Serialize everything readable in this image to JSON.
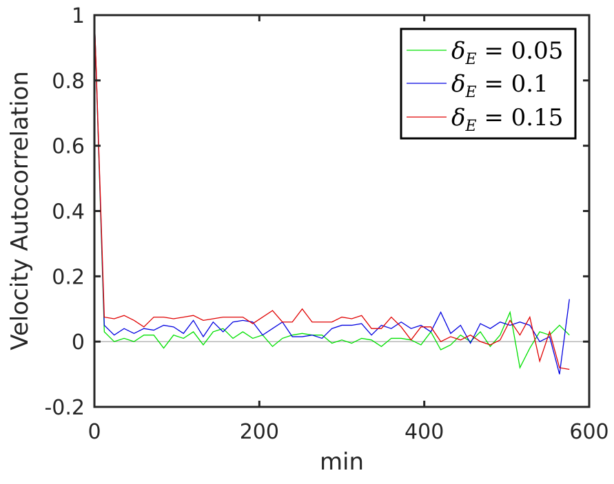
{
  "chart_data": {
    "type": "line",
    "xlabel": "min",
    "ylabel": "Velocity Autocorrelation",
    "xlim": [
      0,
      600
    ],
    "ylim": [
      -0.2,
      1
    ],
    "xticks": [
      "0",
      "200",
      "400",
      "600"
    ],
    "yticks": [
      "-0.2",
      "0",
      "0.2",
      "0.4",
      "0.6",
      "0.8",
      "1"
    ],
    "x": [
      0,
      12,
      24,
      36,
      48,
      60,
      72,
      84,
      96,
      108,
      120,
      132,
      144,
      156,
      168,
      180,
      192,
      204,
      216,
      228,
      240,
      252,
      264,
      276,
      288,
      300,
      312,
      324,
      336,
      348,
      360,
      372,
      384,
      396,
      408,
      420,
      432,
      444,
      456,
      468,
      480,
      492,
      504,
      516,
      528,
      540,
      552,
      564,
      576
    ],
    "series": [
      {
        "name": "0.05",
        "color": "#00e000",
        "values": [
          1,
          0.03,
          0.0,
          0.01,
          0.0,
          0.02,
          0.02,
          -0.02,
          0.02,
          0.01,
          0.03,
          -0.01,
          0.03,
          0.04,
          0.01,
          0.03,
          0.01,
          0.02,
          -0.015,
          0.01,
          0.02,
          0.025,
          0.02,
          0.02,
          -0.005,
          0.005,
          -0.005,
          0.01,
          0.005,
          -0.015,
          0.01,
          0.01,
          0.005,
          -0.01,
          0.03,
          -0.025,
          -0.01,
          0.02,
          0.0,
          0.03,
          -0.015,
          0.02,
          0.09,
          -0.08,
          -0.02,
          0.03,
          0.02,
          0.05,
          0.02
        ]
      },
      {
        "name": "0.1",
        "color": "#0000e0",
        "values": [
          1,
          0.05,
          0.02,
          0.04,
          0.025,
          0.04,
          0.035,
          0.05,
          0.045,
          0.025,
          0.065,
          0.015,
          0.06,
          0.03,
          0.06,
          0.065,
          0.06,
          0.02,
          0.04,
          0.06,
          0.015,
          0.015,
          0.02,
          0.01,
          0.04,
          0.05,
          0.05,
          0.055,
          0.02,
          0.05,
          0.04,
          0.06,
          0.04,
          0.05,
          0.03,
          0.09,
          0.025,
          0.05,
          -0.005,
          0.055,
          0.04,
          0.06,
          0.05,
          0.06,
          0.05,
          0.0,
          0.015,
          -0.1,
          0.13
        ]
      },
      {
        "name": "0.15",
        "color": "#e00000",
        "values": [
          1,
          0.075,
          0.07,
          0.08,
          0.065,
          0.045,
          0.075,
          0.075,
          0.07,
          0.075,
          0.08,
          0.065,
          0.07,
          0.075,
          0.075,
          0.075,
          0.055,
          0.075,
          0.095,
          0.06,
          0.06,
          0.1,
          0.06,
          0.06,
          0.06,
          0.075,
          0.07,
          0.08,
          0.04,
          0.04,
          0.075,
          0.045,
          0.005,
          0.045,
          0.045,
          0.0,
          0.015,
          0.005,
          0.02,
          0.0,
          -0.01,
          0.005,
          0.065,
          0.02,
          0.075,
          -0.06,
          0.03,
          -0.08,
          -0.085
        ]
      }
    ],
    "legend": {
      "position": "top-right",
      "symbol_base": "δ",
      "symbol_sub": "E",
      "entries": [
        "0.05",
        "0.1",
        "0.15"
      ]
    },
    "zero_line": true,
    "grid": false
  }
}
